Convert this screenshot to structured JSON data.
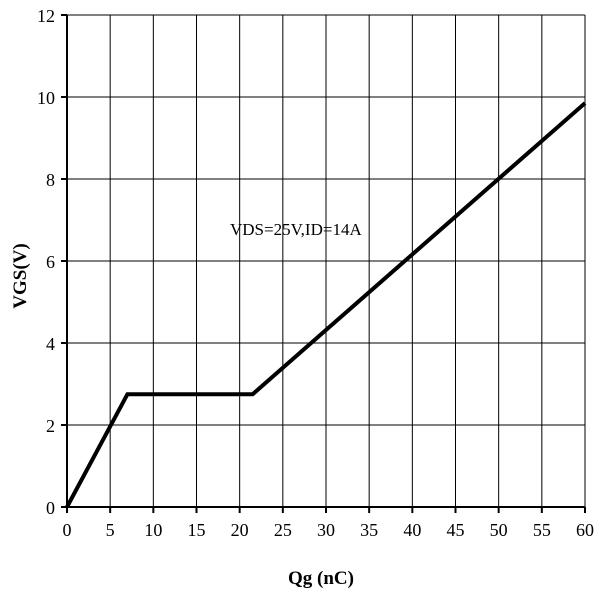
{
  "chart_data": {
    "type": "line",
    "xlabel": "Qg (nC)",
    "ylabel": "VGS(V)",
    "xlim": [
      0,
      60
    ],
    "ylim": [
      0,
      12
    ],
    "xticks": [
      "0",
      "5",
      "10",
      "15",
      "20",
      "25",
      "30",
      "35",
      "40",
      "45",
      "50",
      "55",
      "60"
    ],
    "yticks": [
      "0",
      "2",
      "4",
      "6",
      "8",
      "10",
      "12"
    ],
    "grid": true,
    "annotation": "VDS=25V,ID=14A",
    "series": [
      {
        "x": [
          0,
          7,
          21.5,
          60
        ],
        "y": [
          0,
          2.75,
          2.75,
          9.85
        ]
      }
    ]
  }
}
